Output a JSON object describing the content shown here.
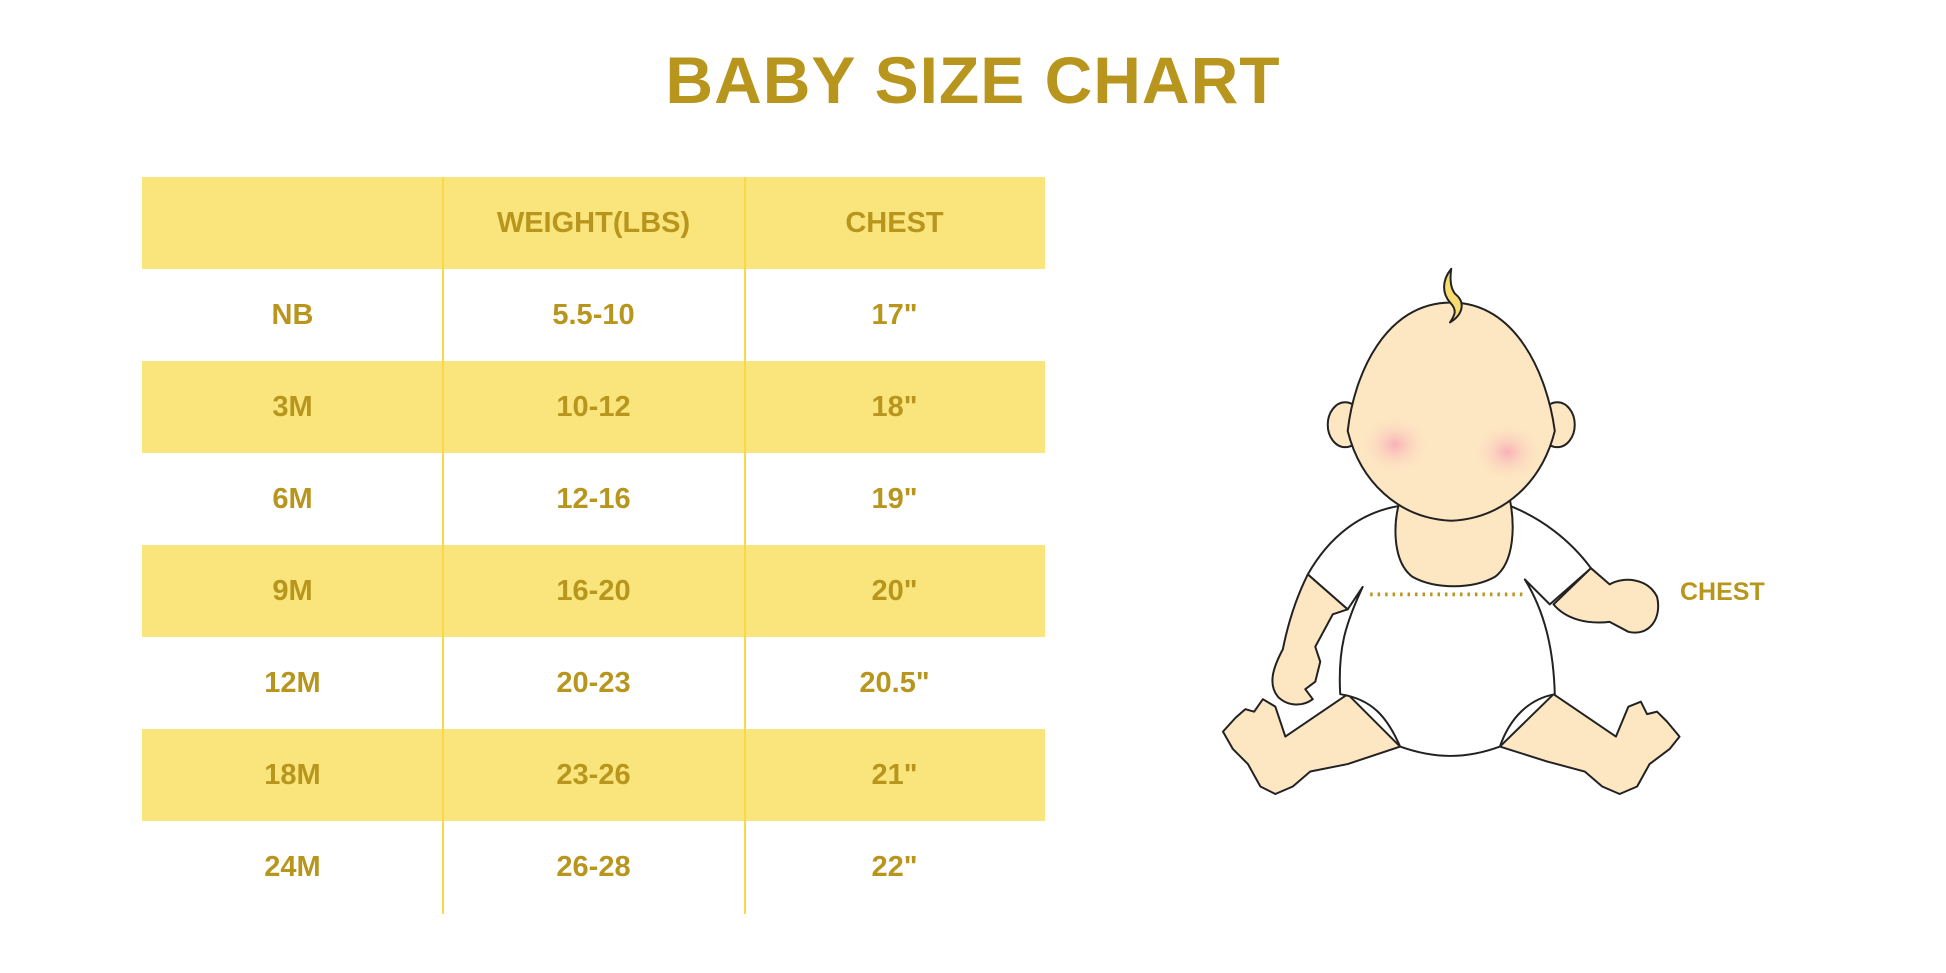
{
  "title": "BABY SIZE CHART",
  "colors": {
    "text": "#b8961e",
    "band": "#fae47c",
    "divider": "#f7d94a",
    "skin": "#fde6c2",
    "hair": "#f7dc6f",
    "cheek": "#f9b6bd"
  },
  "table": {
    "headers": [
      "",
      "WEIGHT(LBS)",
      "CHEST"
    ],
    "rows": [
      [
        "NB",
        "5.5-10",
        "17\""
      ],
      [
        "3M",
        "10-12",
        "18\""
      ],
      [
        "6M",
        "12-16",
        "19\""
      ],
      [
        "9M",
        "16-20",
        "20\""
      ],
      [
        "12M",
        "20-23",
        "20.5\""
      ],
      [
        "18M",
        "23-26",
        "21\""
      ],
      [
        "24M",
        "26-28",
        "22\""
      ]
    ]
  },
  "illustration": {
    "chest_label": "CHEST"
  }
}
